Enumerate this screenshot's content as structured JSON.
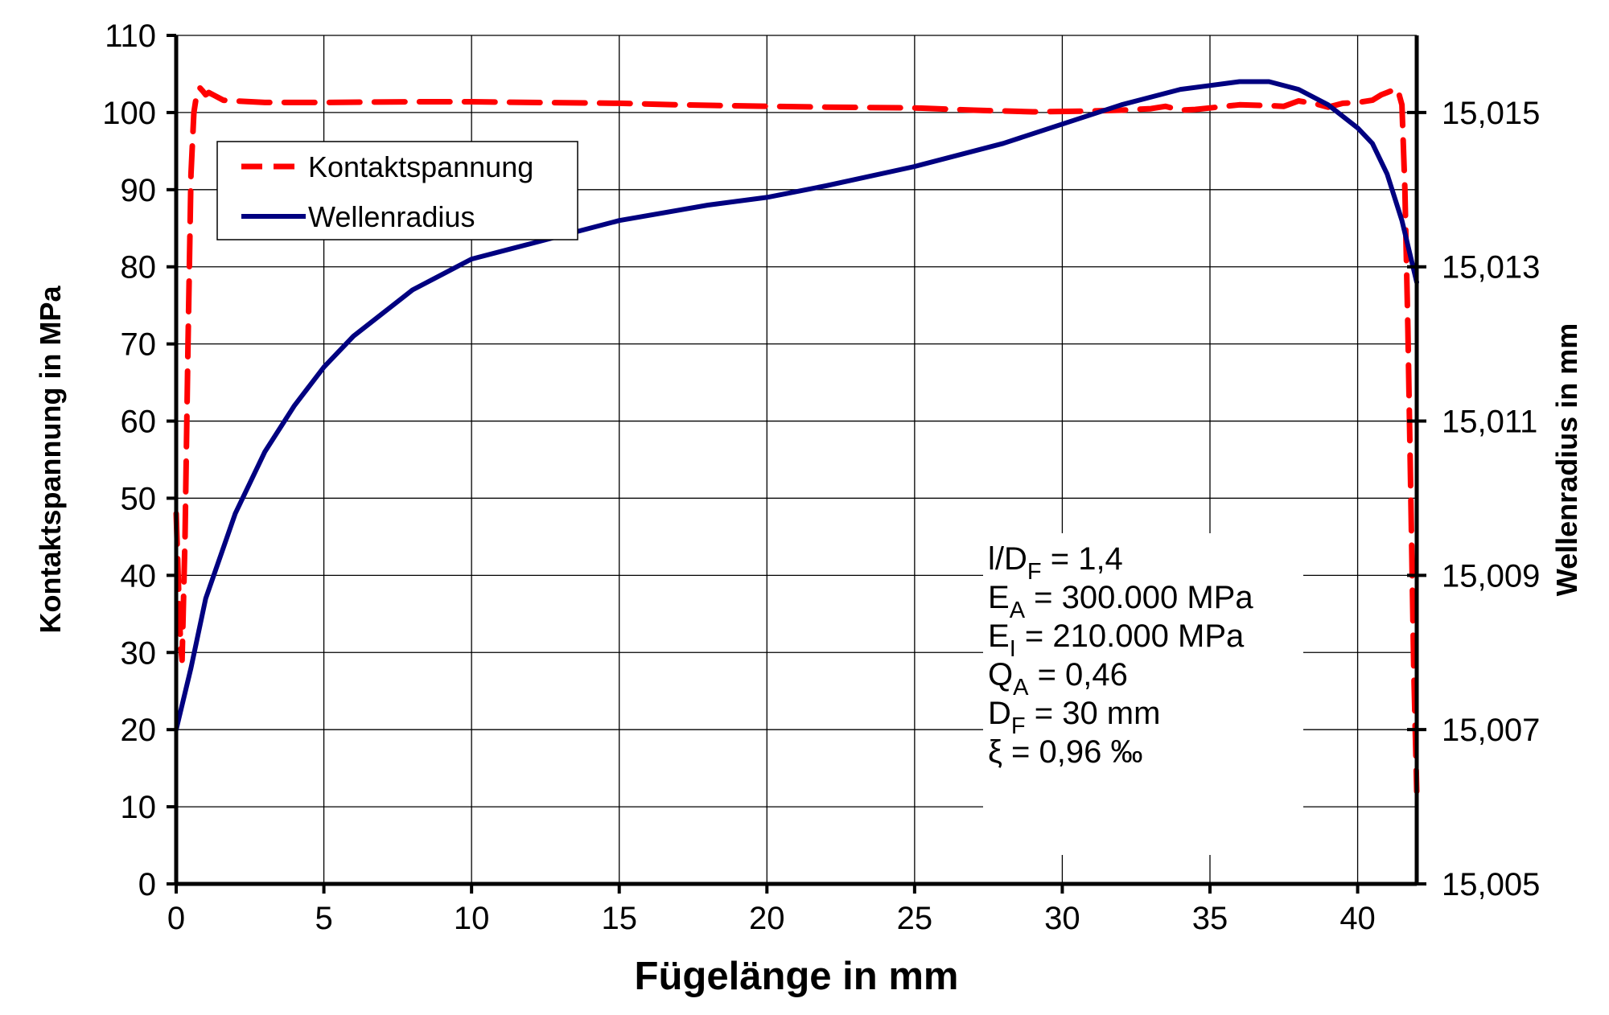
{
  "chart_data": {
    "type": "line",
    "x_axis": {
      "label": "Fügelänge in mm",
      "range": [
        0,
        42
      ],
      "ticks": [
        0,
        5,
        10,
        15,
        20,
        25,
        30,
        35,
        40
      ],
      "tick_labels": [
        "0",
        "5",
        "10",
        "15",
        "20",
        "25",
        "30",
        "35",
        "40"
      ]
    },
    "y_axis_left": {
      "label": "Kontaktspannung in MPa",
      "range": [
        0,
        110
      ],
      "ticks": [
        0,
        10,
        20,
        30,
        40,
        50,
        60,
        70,
        80,
        90,
        100,
        110
      ],
      "tick_labels": [
        "0",
        "10",
        "20",
        "30",
        "40",
        "50",
        "60",
        "70",
        "80",
        "90",
        "100",
        "110"
      ]
    },
    "y_axis_right": {
      "label": "Wellenradius in mm",
      "range": [
        15.005,
        15.016
      ],
      "ticks": [
        15.005,
        15.007,
        15.009,
        15.011,
        15.013,
        15.015
      ],
      "tick_labels": [
        "15,005",
        "15,007",
        "15,009",
        "15,011",
        "15,013",
        "15,015"
      ]
    },
    "grid": true,
    "legend_position": "top-left",
    "series": [
      {
        "name": "Kontaktspannung",
        "axis": "left",
        "color": "#ff0000",
        "style": "dashed",
        "points": [
          [
            0.0,
            48
          ],
          [
            0.1,
            36
          ],
          [
            0.15,
            31
          ],
          [
            0.2,
            29
          ],
          [
            0.3,
            45
          ],
          [
            0.4,
            70
          ],
          [
            0.5,
            92
          ],
          [
            0.6,
            100
          ],
          [
            0.7,
            102.5
          ],
          [
            0.8,
            103.2
          ],
          [
            0.9,
            102.8
          ],
          [
            1.0,
            102.3
          ],
          [
            1.1,
            102.6
          ],
          [
            1.3,
            102.2
          ],
          [
            1.6,
            101.6
          ],
          [
            2,
            101.5
          ],
          [
            3,
            101.3
          ],
          [
            5,
            101.3
          ],
          [
            8,
            101.4
          ],
          [
            10,
            101.4
          ],
          [
            12,
            101.3
          ],
          [
            15,
            101.2
          ],
          [
            17,
            101.0
          ],
          [
            20,
            100.8
          ],
          [
            22,
            100.7
          ],
          [
            25,
            100.6
          ],
          [
            27,
            100.3
          ],
          [
            29,
            100.1
          ],
          [
            31,
            100.2
          ],
          [
            32,
            100.3
          ],
          [
            33,
            100.5
          ],
          [
            33.5,
            100.8
          ],
          [
            34,
            100.3
          ],
          [
            34.5,
            100.4
          ],
          [
            35,
            100.6
          ],
          [
            36,
            101.0
          ],
          [
            37,
            100.9
          ],
          [
            37.5,
            100.8
          ],
          [
            38,
            101.5
          ],
          [
            38.5,
            101.2
          ],
          [
            39,
            100.7
          ],
          [
            39.5,
            101.2
          ],
          [
            40,
            101.3
          ],
          [
            40.5,
            101.6
          ],
          [
            40.8,
            102.3
          ],
          [
            41.0,
            102.6
          ],
          [
            41.2,
            102.9
          ],
          [
            41.35,
            103.1
          ],
          [
            41.5,
            101
          ],
          [
            41.6,
            90
          ],
          [
            41.7,
            72
          ],
          [
            41.8,
            50
          ],
          [
            41.9,
            28
          ],
          [
            42.0,
            12
          ]
        ]
      },
      {
        "name": "Wellenradius",
        "axis": "right",
        "color": "#000080",
        "style": "solid",
        "points": [
          [
            0.0,
            15.007
          ],
          [
            0.5,
            15.0078
          ],
          [
            1,
            15.0087
          ],
          [
            2,
            15.0098
          ],
          [
            3,
            15.0106
          ],
          [
            4,
            15.0112
          ],
          [
            5,
            15.0117
          ],
          [
            6,
            15.0121
          ],
          [
            7,
            15.0124
          ],
          [
            8,
            15.0127
          ],
          [
            9,
            15.0129
          ],
          [
            10,
            15.0131
          ],
          [
            12,
            15.0133
          ],
          [
            15,
            15.0136
          ],
          [
            18,
            15.0138
          ],
          [
            20,
            15.0139
          ],
          [
            22,
            15.01405
          ],
          [
            25,
            15.0143
          ],
          [
            28,
            15.0146
          ],
          [
            30,
            15.01485
          ],
          [
            32,
            15.0151
          ],
          [
            34,
            15.0153
          ],
          [
            35,
            15.01535
          ],
          [
            36,
            15.0154
          ],
          [
            37,
            15.0154
          ],
          [
            38,
            15.0153
          ],
          [
            39,
            15.0151
          ],
          [
            40,
            15.0148
          ],
          [
            40.5,
            15.0146
          ],
          [
            41,
            15.0142
          ],
          [
            41.5,
            15.0136
          ],
          [
            42,
            15.0128
          ]
        ]
      }
    ],
    "annotation": {
      "lines": [
        {
          "main": "l/D",
          "sub": "F",
          "rest": " = 1,4"
        },
        {
          "main": "E",
          "sub": "A",
          "rest": " = 300.000 MPa"
        },
        {
          "main": "E",
          "sub": "I",
          "rest": "  = 210.000 MPa"
        },
        {
          "main": "Q",
          "sub": "A",
          "rest": " = 0,46"
        },
        {
          "main": "D",
          "sub": "F",
          "rest": " = 30 mm"
        },
        {
          "main": "ξ",
          "sub": "",
          "rest": " = 0,96 ‰"
        }
      ]
    }
  }
}
